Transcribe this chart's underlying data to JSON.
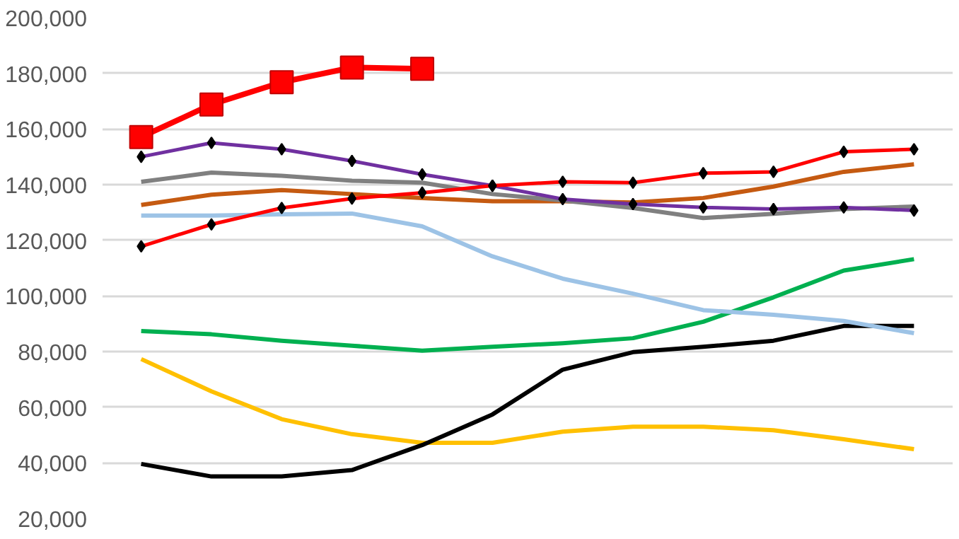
{
  "chart_data": {
    "type": "line",
    "categories": [
      null,
      null,
      null,
      null,
      null,
      null,
      null,
      null,
      null,
      null,
      null,
      null
    ],
    "ylim": [
      20000,
      200000
    ],
    "yticks": [
      {
        "value": 20000,
        "label": "20,000"
      },
      {
        "value": 40000,
        "label": "40,000"
      },
      {
        "value": 60000,
        "label": "60,000"
      },
      {
        "value": 80000,
        "label": "80,000"
      },
      {
        "value": 100000,
        "label": "100,000"
      },
      {
        "value": 120000,
        "label": "120,000"
      },
      {
        "value": 140000,
        "label": "140,000"
      },
      {
        "value": 160000,
        "label": "160,000"
      },
      {
        "value": 180000,
        "label": "180,000"
      },
      {
        "value": 200000,
        "label": "200,000"
      }
    ],
    "grid": "y",
    "tick_labels": "y",
    "line_style": "solid",
    "series": [
      {
        "color": "#ffc000",
        "marker": "none",
        "values": [
          77300,
          65700,
          55700,
          50300,
          47200,
          47200,
          51200,
          53000,
          53000,
          51700,
          48500,
          44900
        ]
      },
      {
        "color": "#000000",
        "marker": "none",
        "values": [
          39600,
          35100,
          35100,
          37400,
          46400,
          57400,
          73500,
          79800,
          81700,
          83900,
          89200,
          89200
        ]
      },
      {
        "color": "#00b050",
        "marker": "none",
        "values": [
          87400,
          86200,
          83900,
          82100,
          80300,
          81700,
          83000,
          84800,
          90700,
          99500,
          109100,
          113200
        ]
      },
      {
        "color": "#9dc3e6",
        "marker": "none",
        "values": [
          128900,
          128900,
          129300,
          129600,
          125000,
          114200,
          106200,
          100800,
          94900,
          93200,
          91000,
          86600
        ]
      },
      {
        "color": "#c55a11",
        "marker": "none",
        "values": [
          132700,
          136400,
          138000,
          136600,
          135200,
          134000,
          134000,
          133600,
          135200,
          139300,
          144600,
          147300
        ]
      },
      {
        "color": "#808080",
        "marker": "none",
        "values": [
          141000,
          144300,
          143200,
          141400,
          140700,
          136600,
          134300,
          131600,
          128000,
          129500,
          131200,
          132100
        ]
      },
      {
        "color": "#7030a0",
        "marker": "diamond",
        "values": [
          150000,
          155000,
          152700,
          148500,
          143700,
          139600,
          134800,
          133000,
          131800,
          131200,
          131800,
          130700
        ]
      },
      {
        "color": "#ff0000",
        "marker": "diamond",
        "values": [
          117800,
          125700,
          131600,
          135000,
          137100,
          139600,
          141000,
          140700,
          144100,
          144600,
          151800,
          152700
        ]
      },
      {
        "color": "#ff0000",
        "marker": "square",
        "values": [
          157100,
          168800,
          176800,
          182100,
          181600,
          null,
          null,
          null,
          null,
          null,
          null,
          null
        ]
      }
    ]
  }
}
